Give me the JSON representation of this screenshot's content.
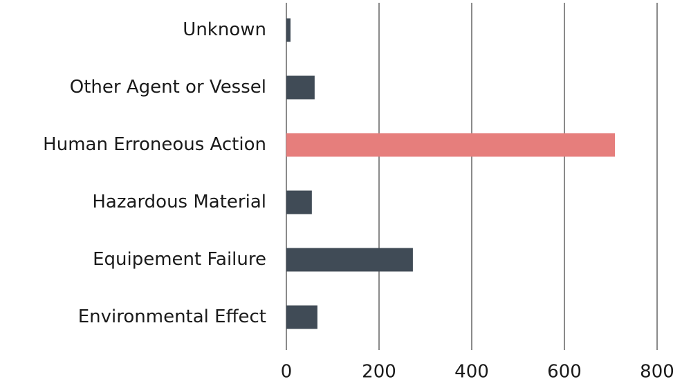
{
  "chart_data": {
    "type": "bar",
    "orientation": "horizontal",
    "categories": [
      "Unknown",
      "Other Agent or Vessel",
      "Human Erroneous Action",
      "Hazardous Material",
      "Equipement Failure",
      "Environmental Effect"
    ],
    "values": [
      9,
      61,
      709,
      55,
      273,
      67
    ],
    "colors": [
      "#404b56",
      "#404b56",
      "#e67e7c",
      "#404b56",
      "#404b56",
      "#404b56"
    ],
    "xlim": [
      0,
      800
    ],
    "xticks": [
      0,
      200,
      400,
      600,
      800
    ],
    "grid": true
  }
}
